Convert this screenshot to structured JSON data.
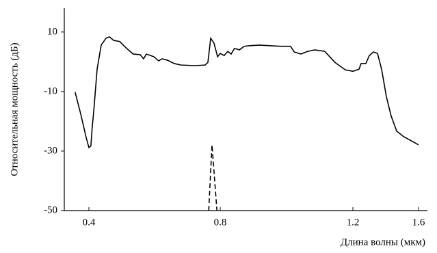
{
  "chart_data": {
    "type": "line",
    "xlabel": "Длина волны (мкм)",
    "ylabel": "Относительная мощность (дБ)",
    "xlim": [
      0.325,
      1.65
    ],
    "xticks": [
      0.4,
      0.8,
      1.2,
      1.6
    ],
    "ylim": [
      -50,
      18
    ],
    "yticks": [
      10,
      -10,
      -30,
      -50
    ],
    "grid": false,
    "series": [
      {
        "color": "#000000",
        "dash": false,
        "x": [
          0.358,
          0.375,
          0.392,
          0.4,
          0.406,
          0.41,
          0.415,
          0.425,
          0.4375,
          0.452,
          0.4625,
          0.475,
          0.494,
          0.515,
          0.535,
          0.556,
          0.5667,
          0.575,
          0.598,
          0.6125,
          0.623,
          0.64,
          0.66,
          0.681,
          0.723,
          0.754,
          0.7625,
          0.771,
          0.781,
          0.792,
          0.8,
          0.812,
          0.823,
          0.833,
          0.843,
          0.858,
          0.872,
          0.889,
          0.92,
          0.981,
          1.012,
          1.023,
          1.043,
          1.064,
          1.085,
          1.115,
          1.146,
          1.177,
          1.2,
          1.2375,
          1.25,
          1.279,
          1.3,
          1.325,
          1.35,
          1.375,
          1.404,
          1.433,
          1.467,
          1.508,
          1.6
        ],
        "values": [
          -10.2,
          -17.5,
          -25.6,
          -28.8,
          -28.3,
          -22.1,
          -16.3,
          -2.5,
          5.6,
          7.9,
          8.4,
          7.2,
          6.8,
          4.5,
          2.6,
          2.4,
          1.0,
          2.6,
          1.7,
          0.3,
          1.0,
          0.5,
          -0.6,
          -1.1,
          -1.3,
          -1.1,
          -0.2,
          7.9,
          6.3,
          1.7,
          2.8,
          2.1,
          3.5,
          2.6,
          4.5,
          4.0,
          5.2,
          5.4,
          5.6,
          5.2,
          5.2,
          3.3,
          2.6,
          3.5,
          4.0,
          3.5,
          -0.2,
          -2.7,
          -3.2,
          -2.5,
          -0.6,
          -0.6,
          2.1,
          3.3,
          2.8,
          -2.5,
          -11.7,
          -18.2,
          -23.3,
          -25.1,
          -27.9
        ]
      },
      {
        "color": "#000000",
        "dash": true,
        "x": [
          0.765,
          0.775,
          0.79
        ],
        "values": [
          -50,
          -27.9,
          -50
        ]
      }
    ]
  }
}
